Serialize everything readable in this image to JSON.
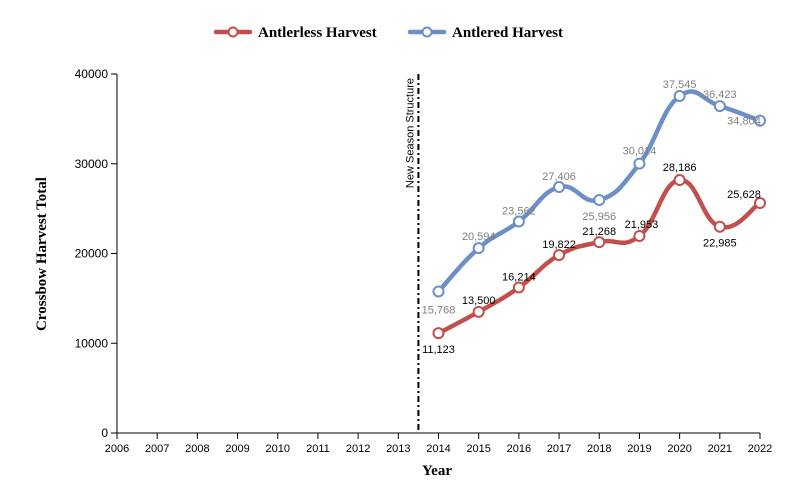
{
  "chart_data": {
    "type": "line",
    "xlabel": "Year",
    "ylabel": "Crossbow Harvest Total",
    "x": [
      "2006",
      "2007",
      "2008",
      "2009",
      "2010",
      "2011",
      "2012",
      "2013",
      "2014",
      "2015",
      "2016",
      "2017",
      "2018",
      "2019",
      "2020",
      "2021",
      "2022"
    ],
    "ylim": [
      0,
      40000
    ],
    "yticks": [
      0,
      10000,
      20000,
      30000,
      40000
    ],
    "ytick_labels": [
      "0",
      "10000",
      "20000",
      "30000",
      "40000"
    ],
    "series": [
      {
        "name": "Antlerless Harvest",
        "color": "#c0504d",
        "label_color": "#000000",
        "x": [
          "2014",
          "2015",
          "2016",
          "2017",
          "2018",
          "2019",
          "2020",
          "2021",
          "2022"
        ],
        "values": [
          11123,
          13500,
          16214,
          19822,
          21268,
          21953,
          28186,
          22985,
          25628
        ],
        "labels": [
          "11,123",
          "13,500",
          "16,214",
          "19,822",
          "21,268",
          "21,953",
          "28,186",
          "22,985",
          "25,628"
        ]
      },
      {
        "name": "Antlered Harvest",
        "color": "#6d8fc7",
        "label_color": "#7f7f7f",
        "x": [
          "2014",
          "2015",
          "2016",
          "2017",
          "2018",
          "2019",
          "2020",
          "2021",
          "2022"
        ],
        "values": [
          15768,
          20594,
          23562,
          27406,
          25956,
          30014,
          37545,
          36423,
          34804
        ],
        "labels": [
          "15,768",
          "20,594",
          "23,562",
          "27,406",
          "25,956",
          "30,014",
          "37,545",
          "36,423",
          "34,804"
        ]
      }
    ],
    "annotation": {
      "text": "New Season Structure",
      "x": 2013.5
    },
    "legend_position": "top-center",
    "grid": false
  }
}
